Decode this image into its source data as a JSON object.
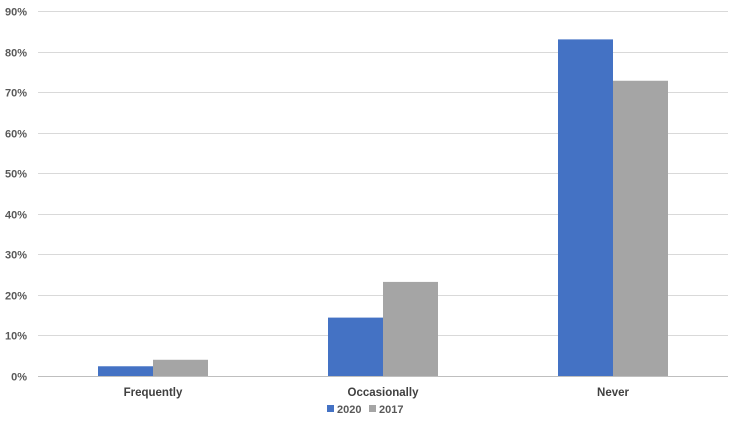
{
  "chart_data": {
    "type": "bar",
    "categories": [
      "Frequently",
      "Occasionally",
      "Never"
    ],
    "series": [
      {
        "name": "2020",
        "color": "#4472c4",
        "values": [
          2.4,
          14.4,
          83.0
        ]
      },
      {
        "name": "2017",
        "color": "#a5a5a5",
        "values": [
          4.0,
          23.2,
          72.8
        ]
      }
    ],
    "y_ticks": [
      "0%",
      "10%",
      "20%",
      "30%",
      "40%",
      "50%",
      "60%",
      "70%",
      "80%",
      "90%"
    ],
    "ylim": [
      0,
      90
    ],
    "grid": true,
    "legend_position": "bottom"
  }
}
